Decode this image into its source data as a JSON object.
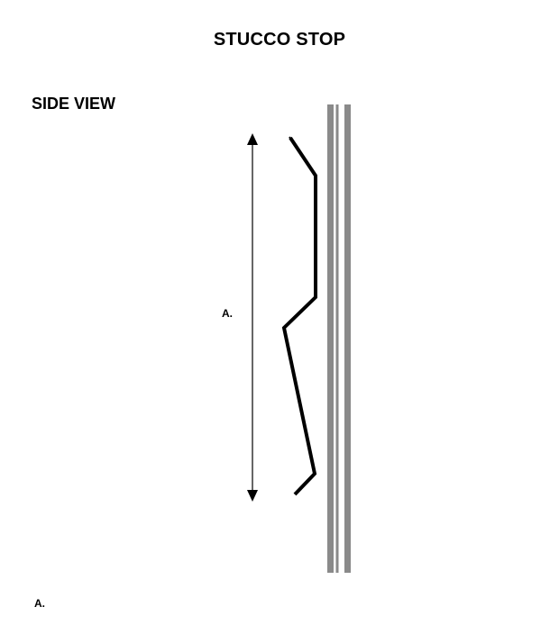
{
  "title": "STUCCO STOP",
  "view_label": "SIDE VIEW",
  "dimension_label": "A.",
  "legend": {
    "items": [
      {
        "key": "A.",
        "value": ""
      }
    ]
  },
  "colors": {
    "wall": "#8a8a8a",
    "profile": "#000000",
    "dimension": "#000000"
  }
}
